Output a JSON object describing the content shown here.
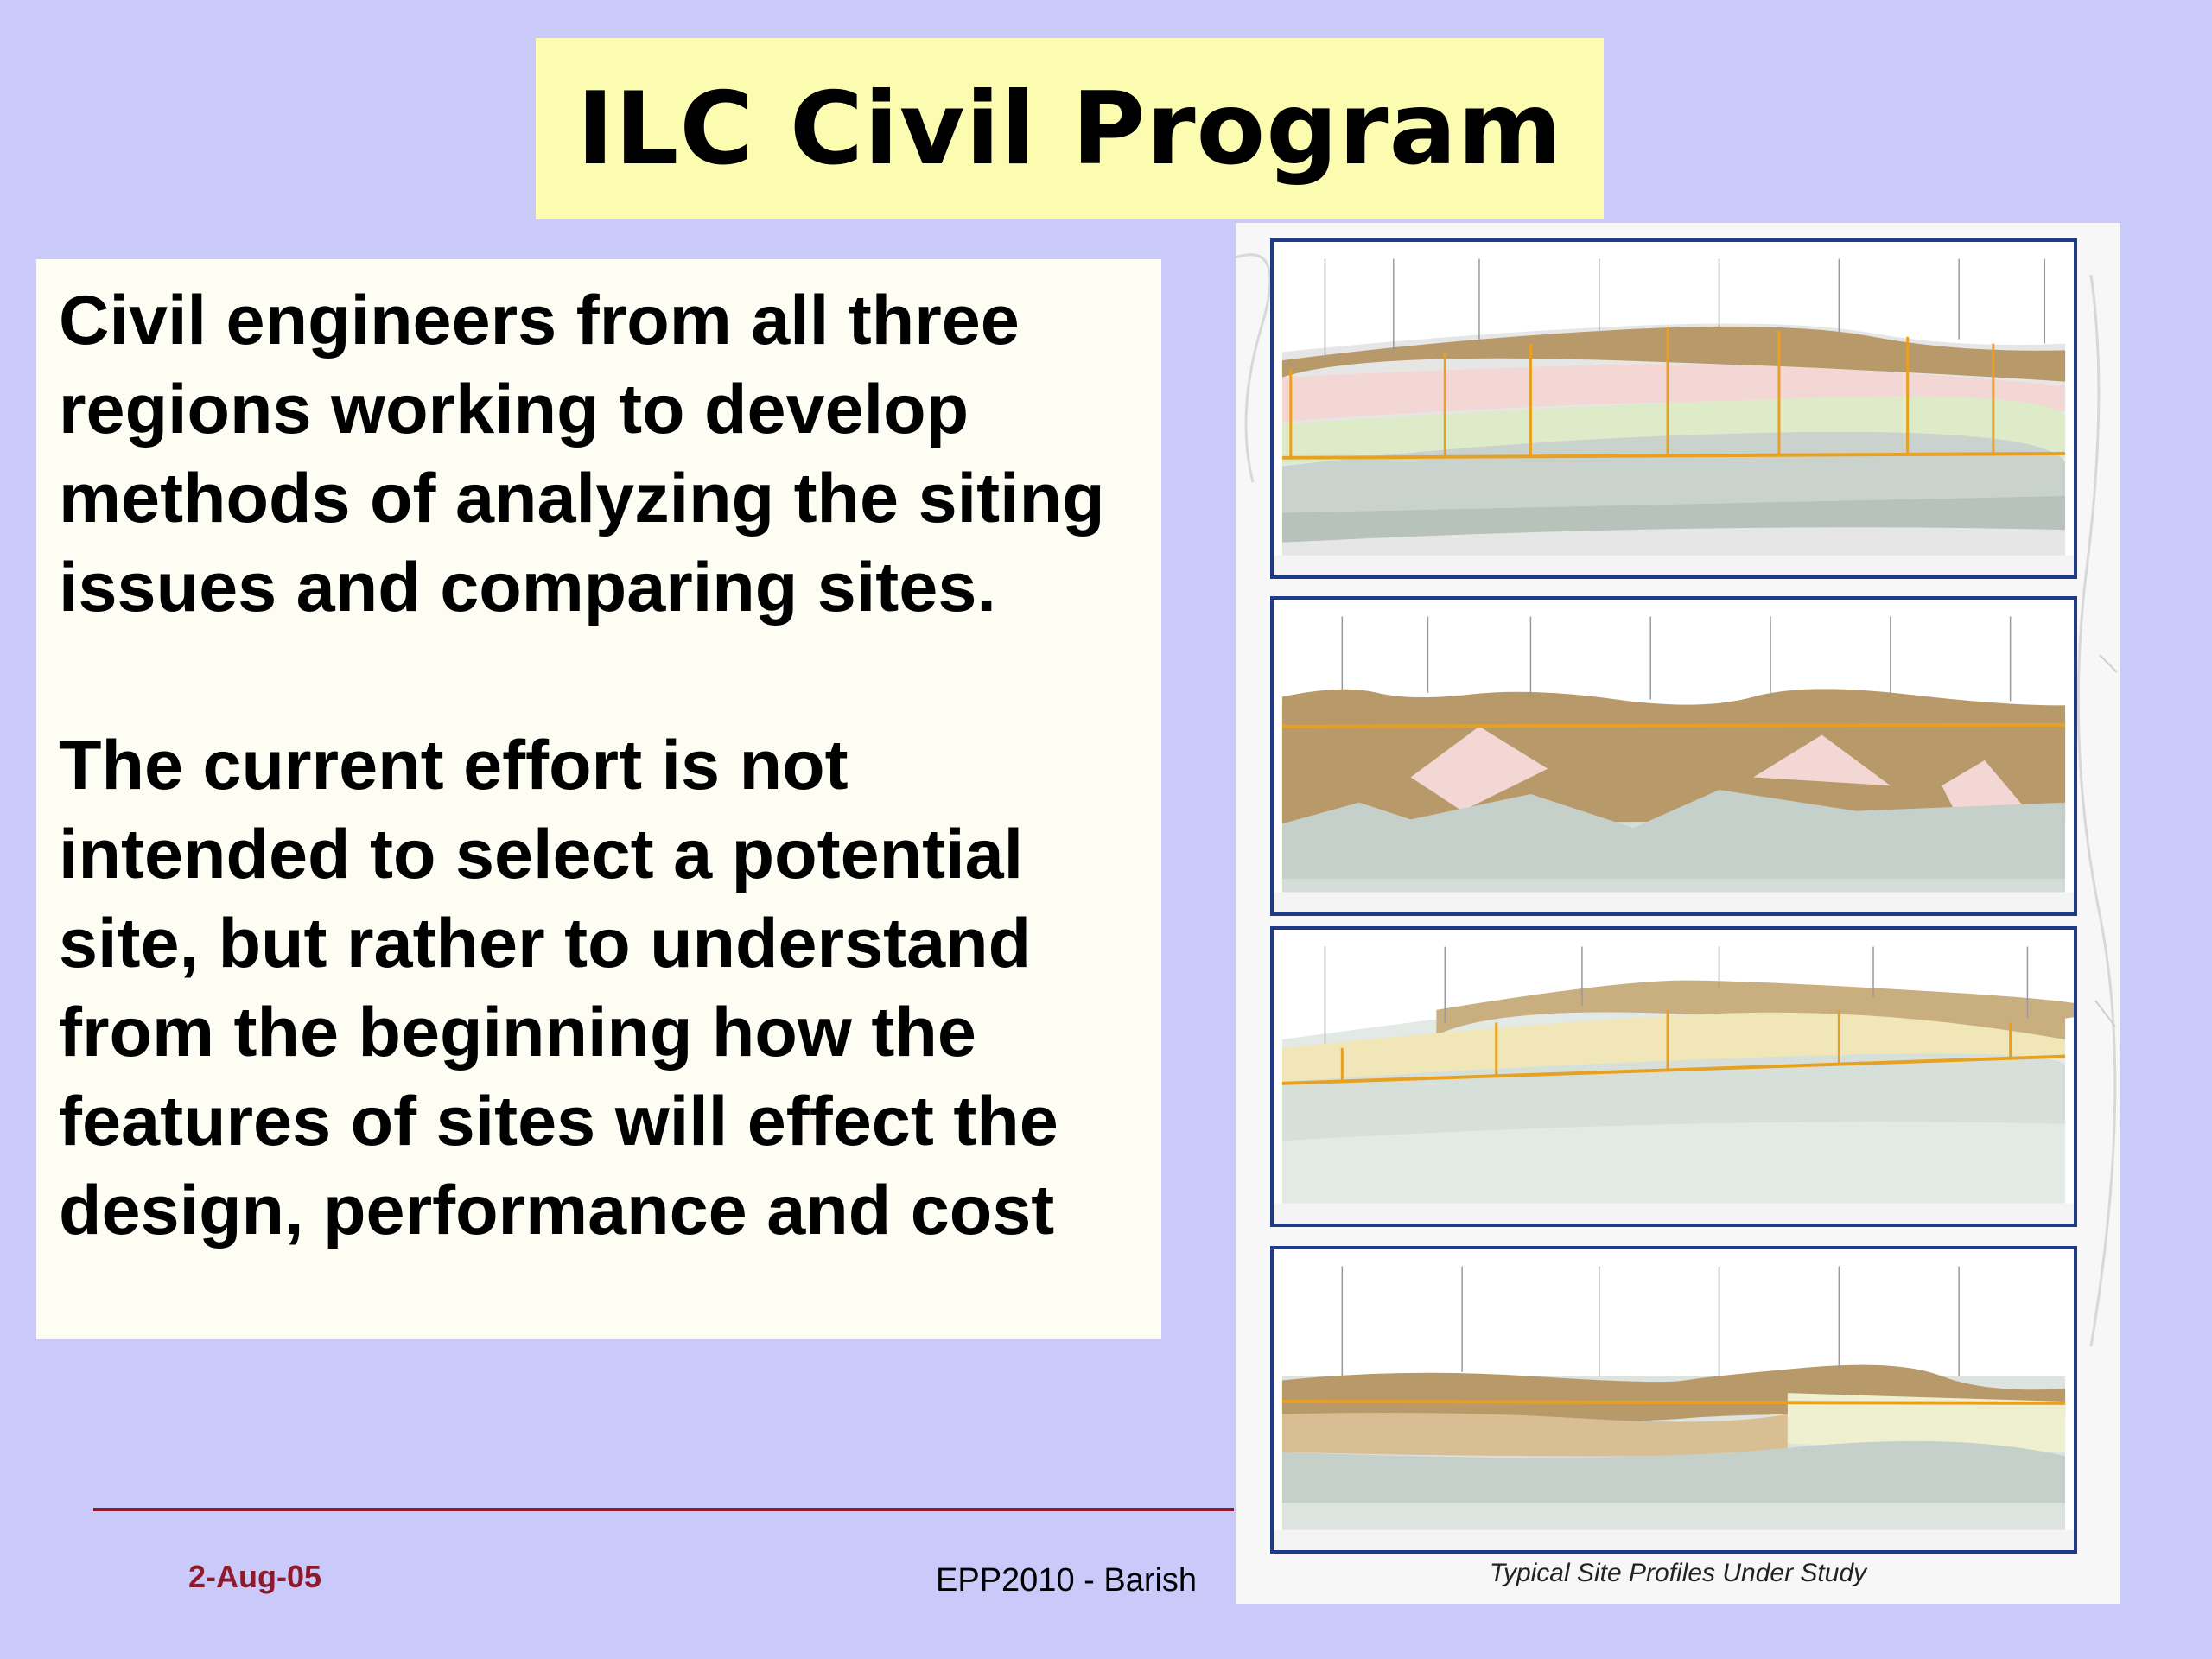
{
  "title": "ILC Civil Program",
  "paragraphs": [
    "Civil engineers from all three regions working to develop methods of analyzing the siting issues and comparing sites.",
    "The current effort is not intended to select a potential site, but rather to understand from the beginning how the features of sites will effect the design, performance and cost"
  ],
  "figure": {
    "caption": "Typical Site Profiles Under Study",
    "profiles": [
      "profile-1",
      "profile-2",
      "profile-3",
      "profile-4"
    ]
  },
  "footer": {
    "date": "2-Aug-05",
    "center": "EPP2010  - Barish"
  },
  "colors": {
    "background": "#CACAFA",
    "title_box": "#FCFCB0",
    "text_box": "#FDFDF4",
    "accent_line": "#8E1A2C",
    "profile_border": "#1E3A8A",
    "soil_brown": "#B89A6A",
    "tunnel_orange": "#E8A020"
  }
}
